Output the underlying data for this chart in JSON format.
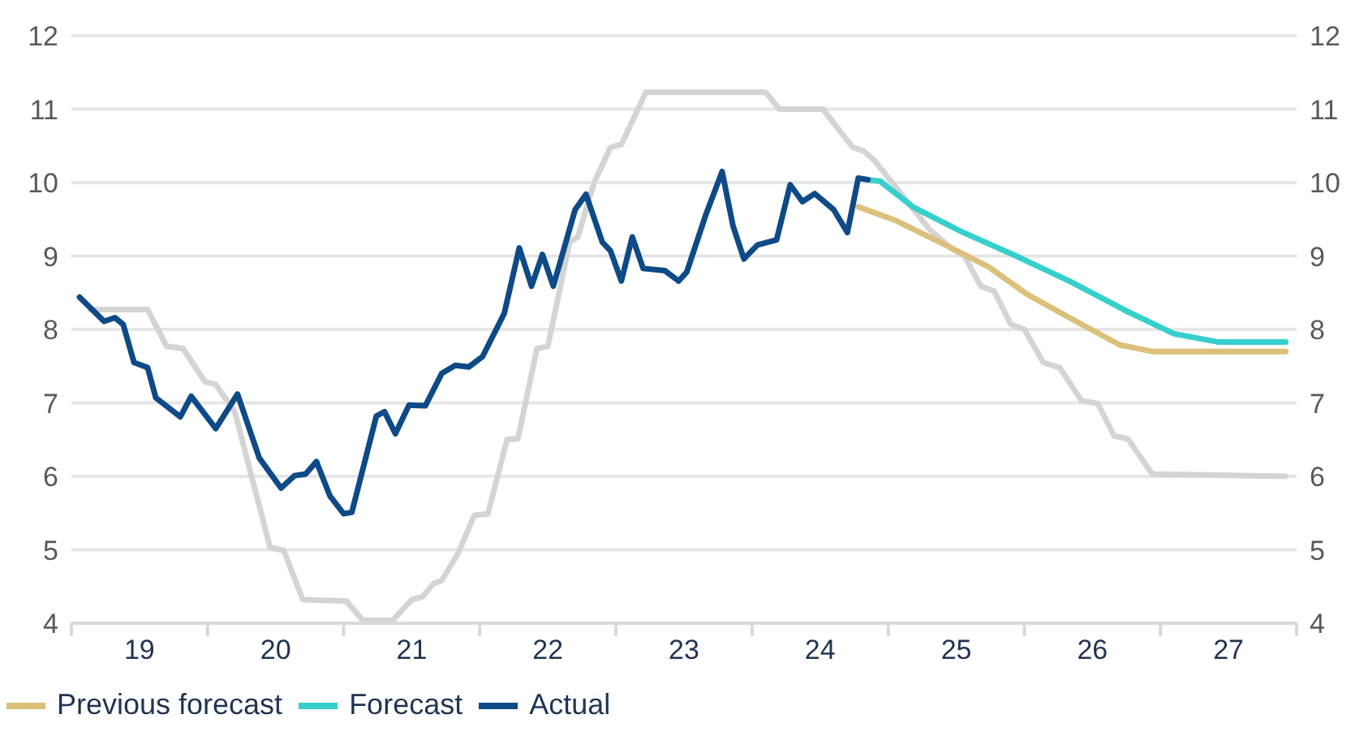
{
  "chart_data": {
    "type": "line",
    "xlim": [
      18.5,
      27.5
    ],
    "xticks": [
      {
        "value": 18.5,
        "label": null
      },
      19,
      {
        "value": 19.5,
        "label": null
      },
      20,
      {
        "value": 20.5,
        "label": null
      },
      21,
      {
        "value": 21.5,
        "label": null
      },
      22,
      {
        "value": 22.5,
        "label": null
      },
      23,
      {
        "value": 23.5,
        "label": null
      },
      24,
      {
        "value": 24.5,
        "label": null
      },
      25,
      {
        "value": 25.5,
        "label": null
      },
      26,
      {
        "value": 26.5,
        "label": null
      },
      27,
      {
        "value": 27.5,
        "label": null
      }
    ],
    "ylim": [
      4,
      12
    ],
    "yticks": [
      4,
      5,
      6,
      7,
      8,
      9,
      10,
      11,
      12
    ],
    "y2lim": [
      4,
      12
    ],
    "y2ticks": [
      4,
      5,
      6,
      7,
      8,
      9,
      10,
      11,
      12
    ],
    "grid": "y",
    "legend": "bottom left",
    "marker": "none",
    "line_style": "solid",
    "series": [
      {
        "color": "#d4d4d4",
        "x": [
          18.64,
          19.06,
          19.2,
          19.32,
          19.48,
          19.56,
          19.7,
          19.96,
          20.06,
          20.2,
          20.52,
          20.64,
          20.86,
          21.0,
          21.08,
          21.16,
          21.22,
          21.34,
          21.46,
          21.56,
          21.7,
          21.78,
          21.92,
          22.0,
          22.16,
          22.22,
          22.34,
          22.46,
          22.54,
          22.72,
          23.6,
          23.7,
          24.02,
          24.24,
          24.32,
          24.4,
          24.8,
          24.96,
          25.06,
          25.18,
          25.28,
          25.4,
          25.5,
          25.64,
          25.76,
          25.92,
          26.04,
          26.16,
          26.26,
          26.44,
          27.42
        ],
        "values": [
          8.27,
          8.27,
          7.77,
          7.74,
          7.29,
          7.25,
          6.88,
          5.03,
          4.99,
          4.32,
          4.3,
          4.04,
          4.04,
          4.32,
          4.36,
          4.54,
          4.58,
          4.95,
          5.47,
          5.49,
          6.5,
          6.51,
          7.74,
          7.77,
          9.19,
          9.26,
          10.0,
          10.48,
          10.52,
          11.23,
          11.23,
          11.0,
          11.0,
          10.48,
          10.43,
          10.3,
          9.37,
          9.11,
          9.0,
          8.59,
          8.52,
          8.07,
          8.0,
          7.55,
          7.48,
          7.03,
          6.99,
          6.55,
          6.51,
          6.03,
          6.0
        ]
      },
      {
        "name": "Previous forecast",
        "color": "#dcc07a",
        "x": [
          24.28,
          24.56,
          24.92,
          25.24,
          25.52,
          25.88,
          26.2,
          26.44,
          27.42
        ],
        "values": [
          9.67,
          9.48,
          9.15,
          8.85,
          8.48,
          8.11,
          7.79,
          7.7,
          7.7
        ]
      },
      {
        "name": "Forecast",
        "color": "#36cfcc",
        "x": [
          24.34,
          24.44,
          24.68,
          25.04,
          25.44,
          25.84,
          26.24,
          26.6,
          26.92,
          27.42
        ],
        "values": [
          10.04,
          10.02,
          9.67,
          9.33,
          9.0,
          8.65,
          8.26,
          7.94,
          7.83,
          7.83
        ]
      },
      {
        "name": "Actual",
        "color": "#0d4a87",
        "x": [
          18.56,
          18.74,
          18.82,
          18.88,
          18.96,
          19.06,
          19.12,
          19.3,
          19.38,
          19.56,
          19.72,
          19.88,
          20.04,
          20.14,
          20.22,
          20.3,
          20.4,
          20.5,
          20.56,
          20.74,
          20.8,
          20.88,
          20.98,
          21.1,
          21.22,
          21.32,
          21.42,
          21.52,
          21.68,
          21.79,
          21.88,
          21.96,
          22.04,
          22.2,
          22.28,
          22.4,
          22.46,
          22.54,
          22.62,
          22.7,
          22.86,
          22.96,
          23.02,
          23.16,
          23.28,
          23.36,
          23.44,
          23.54,
          23.68,
          23.78,
          23.87,
          23.96,
          24.1,
          24.2,
          24.28,
          24.35
        ],
        "values": [
          8.44,
          8.11,
          8.16,
          8.07,
          7.55,
          7.48,
          7.07,
          6.81,
          7.09,
          6.65,
          7.12,
          6.25,
          5.84,
          6.01,
          6.03,
          6.2,
          5.73,
          5.49,
          5.51,
          6.82,
          6.88,
          6.58,
          6.97,
          6.96,
          7.4,
          7.51,
          7.49,
          7.63,
          8.22,
          9.11,
          8.59,
          9.02,
          8.59,
          9.63,
          9.84,
          9.19,
          9.07,
          8.66,
          9.26,
          8.83,
          8.8,
          8.66,
          8.78,
          9.56,
          10.15,
          9.41,
          8.96,
          9.15,
          9.22,
          9.97,
          9.74,
          9.85,
          9.63,
          9.32,
          10.06,
          10.04
        ]
      }
    ]
  }
}
